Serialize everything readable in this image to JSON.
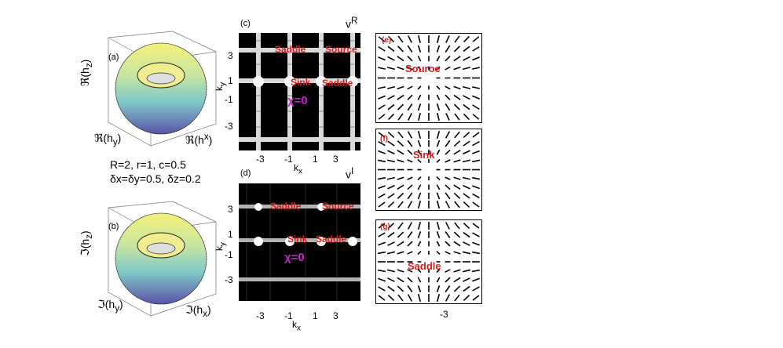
{
  "panel_a": {
    "letter": "(a)",
    "zlabel": "ℜ(h",
    "zsub": "z",
    "ylabel": "ℜ(h",
    "ysub": "y",
    "xlabel": "ℜ(h",
    "xsup": "x"
  },
  "panel_b": {
    "letter": "(b)",
    "zlabel": "ℑ(h",
    "zsub": "z",
    "ylabel": "ℑ(h",
    "ysub": "y",
    "xlabel": "ℑ(h",
    "xsub": "x"
  },
  "params": {
    "line1": "R=2, r=1, c=0.5",
    "line2": "δx=δy=0.5, δz=0.2"
  },
  "panel_c": {
    "letter": "(c)",
    "title_base": "v",
    "title_sup": "R",
    "ylabel": "k",
    "ysub": "y",
    "xlabel": "k",
    "xsub": "x",
    "yticks": [
      "3",
      "1",
      "-1",
      "-3"
    ],
    "xticks": [
      "-3",
      "-1",
      "1",
      "3"
    ],
    "labels": {
      "saddle1": "Saddle",
      "source": "Source",
      "sink": "Sink",
      "saddle2": "Saddle"
    },
    "chi": "χ=0"
  },
  "panel_d": {
    "letter": "(d)",
    "title_base": "v",
    "title_sup": "I",
    "ylabel": "k",
    "ysub": "y",
    "xlabel": "k",
    "xsub": "x",
    "yticks": [
      "3",
      "1",
      "-1",
      "-3"
    ],
    "xticks": [
      "-3",
      "-1",
      "1",
      "3"
    ],
    "labels": {
      "saddle1": "Saddle",
      "source": "Source",
      "sink": "Sink",
      "saddle2": "Saddle"
    },
    "chi": "χ=0"
  },
  "panel_e": {
    "letter": "(e)",
    "label": "Souroe"
  },
  "panel_f": {
    "letter": "(f)",
    "label": "Sink"
  },
  "panel_g": {
    "letter": "(g)",
    "label": "Saddle",
    "xtick": "-3"
  }
}
